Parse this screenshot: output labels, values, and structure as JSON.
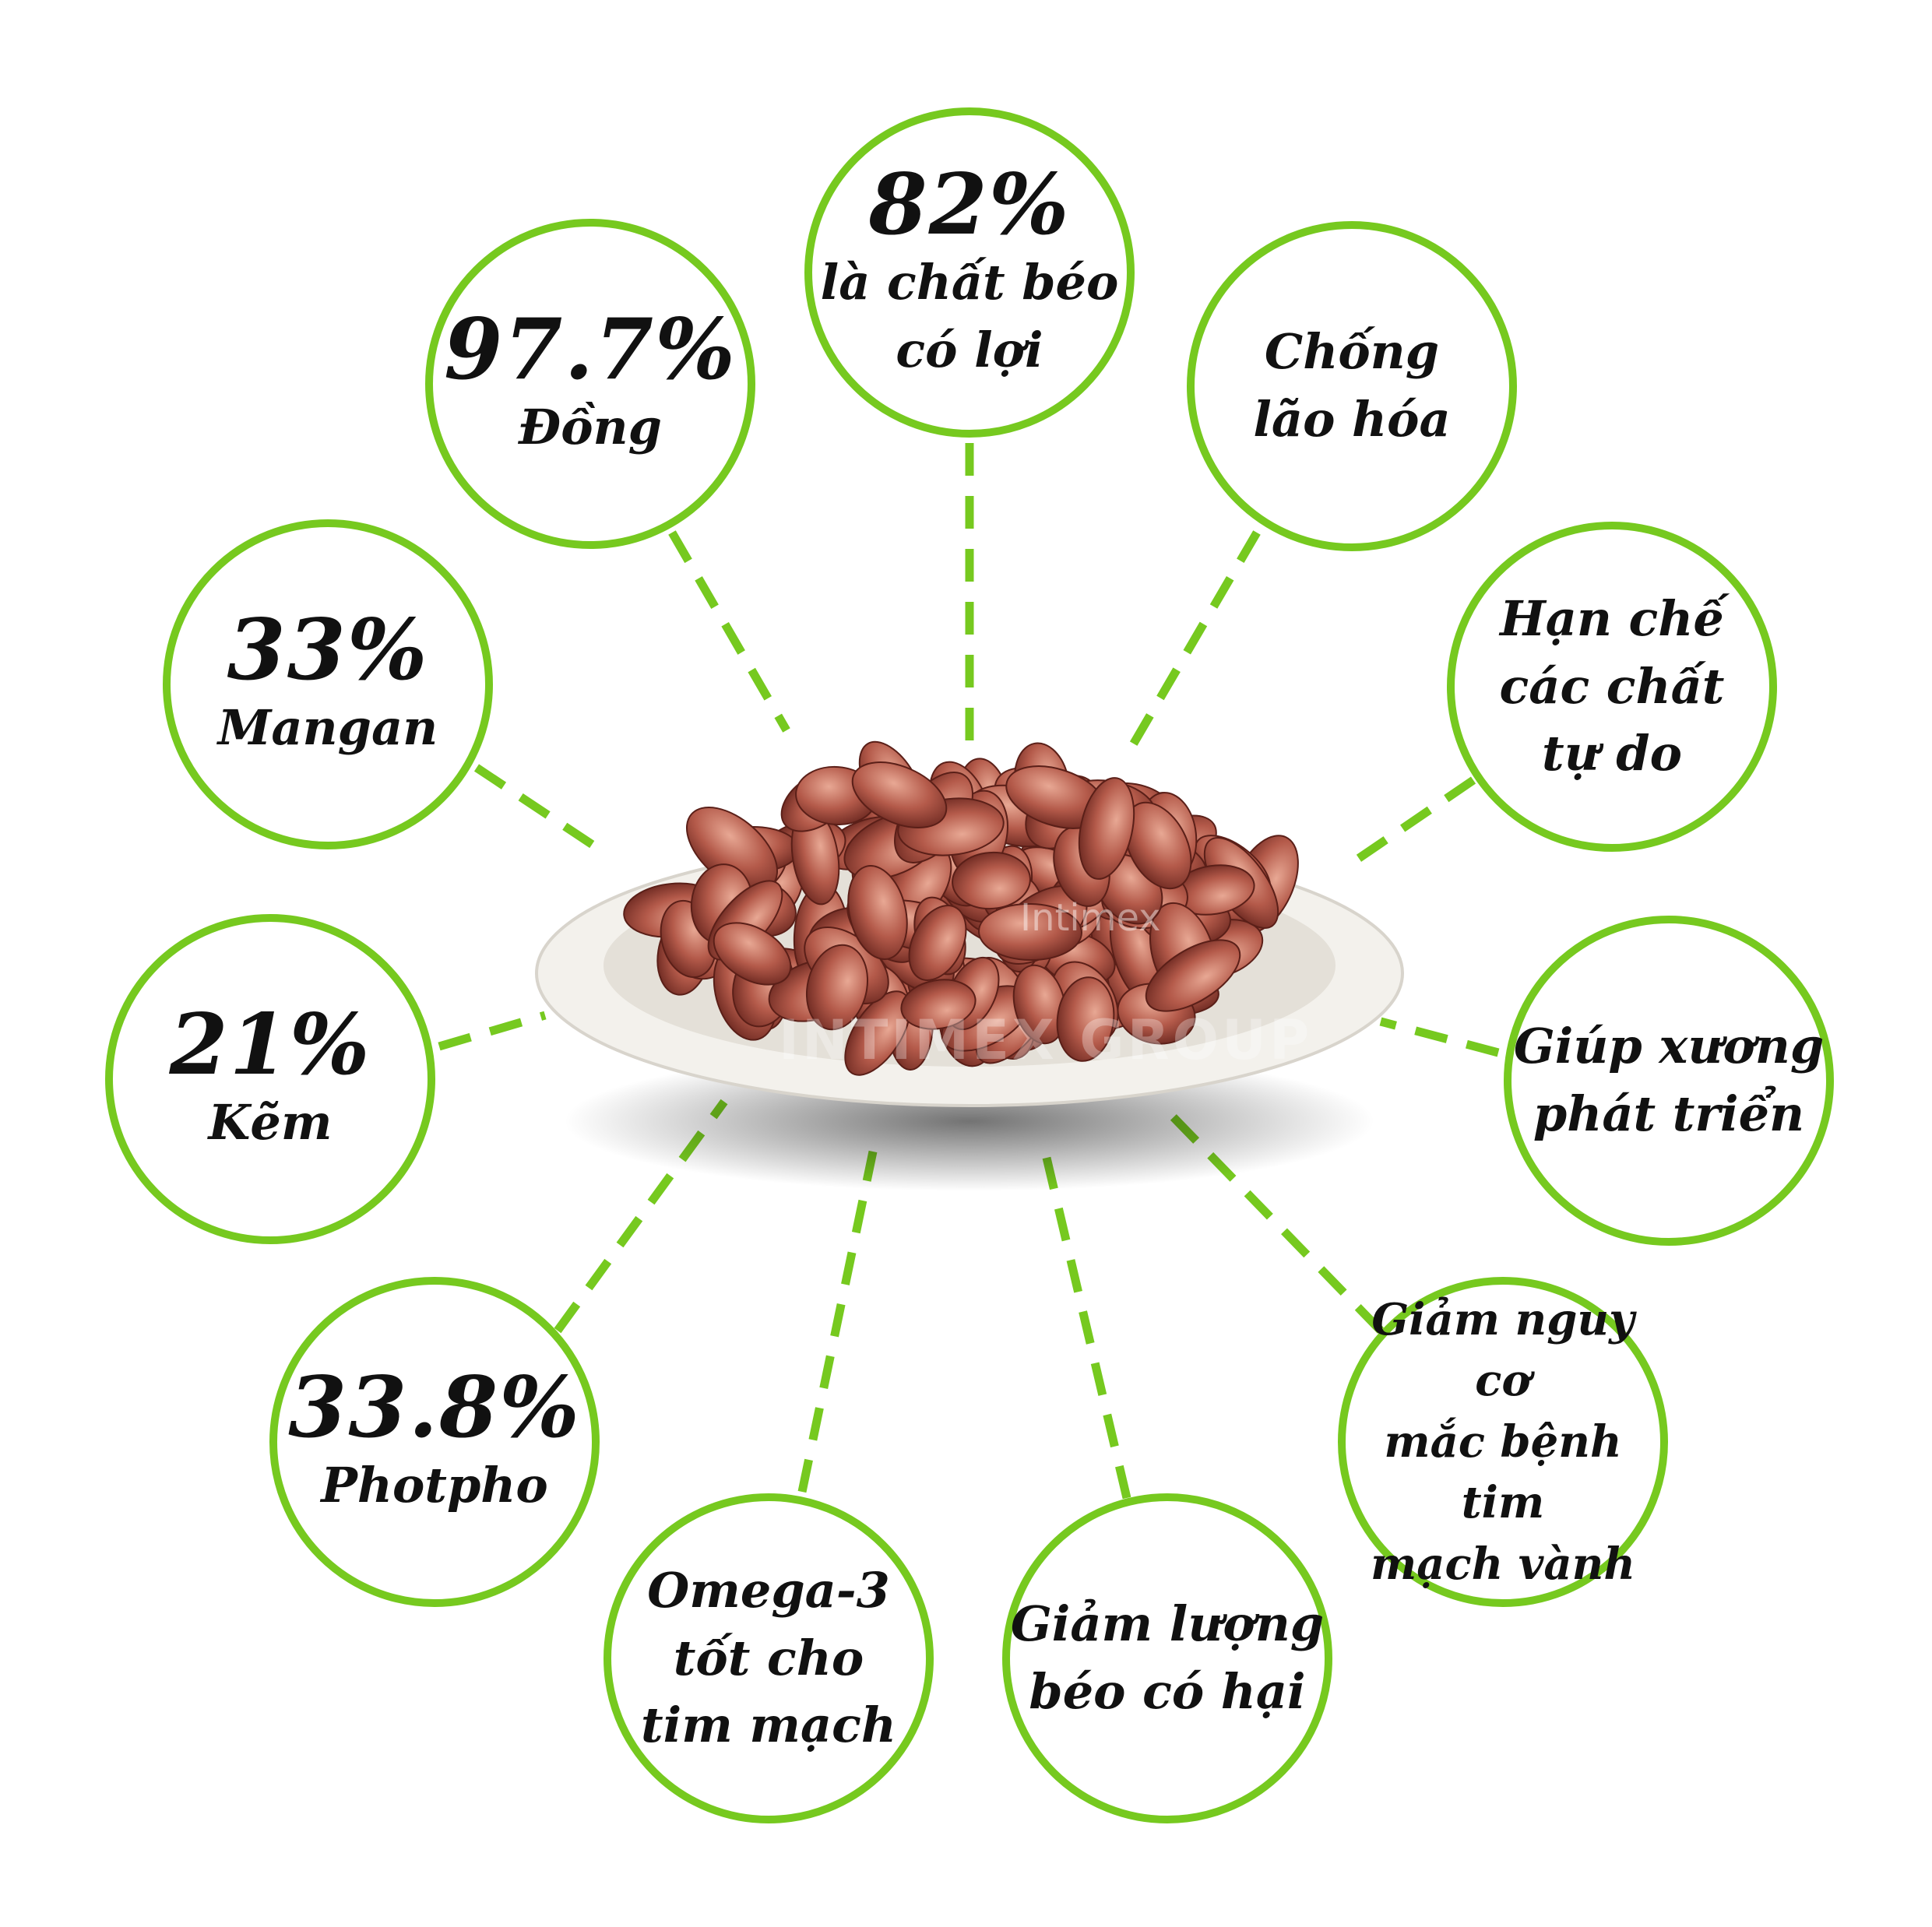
{
  "accent_color": "#76c91f",
  "watermark": {
    "logo": "Intimex",
    "group": "INTIMEX GROUP"
  },
  "facts": [
    {
      "value": "82%",
      "label": "là chất béo\ncó lợi"
    },
    {
      "value": "97.7%",
      "label": "Đồng"
    },
    {
      "value": "",
      "label": "Chống\nlão hóa"
    },
    {
      "value": "33%",
      "label": "Mangan"
    },
    {
      "value": "",
      "label": "Hạn chế\ncác chất\ntự do"
    },
    {
      "value": "21%",
      "label": "Kẽm"
    },
    {
      "value": "",
      "label": "Giúp xương\nphát triển"
    },
    {
      "value": "33.8%",
      "label": "Photpho"
    },
    {
      "value": "",
      "label": "Giảm nguy cơ\nmắc bệnh tim\nmạch vành"
    },
    {
      "value": "",
      "label": "Omega-3\ntốt cho\ntim mạch"
    },
    {
      "value": "",
      "label": "Giảm lượng\nbéo có hại"
    }
  ]
}
